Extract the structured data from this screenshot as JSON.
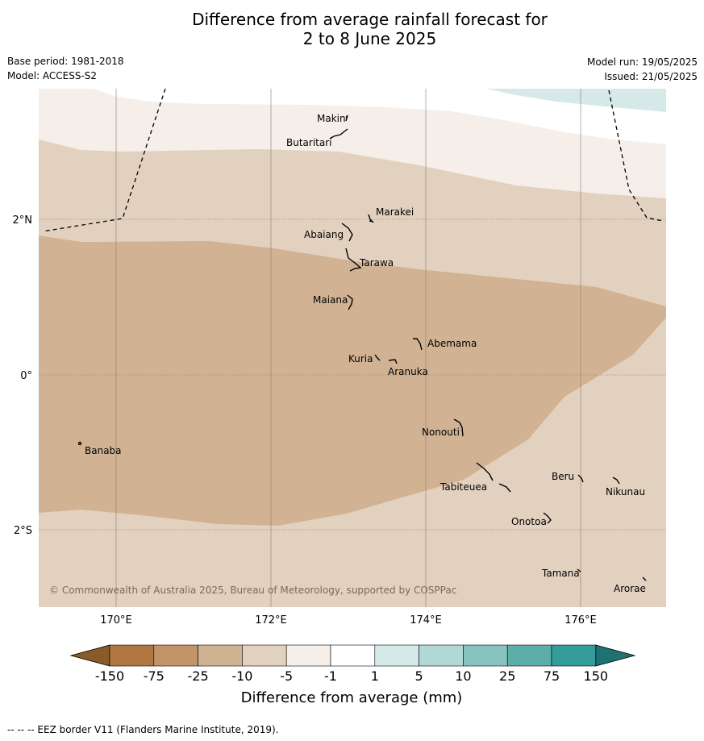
{
  "title_line1": "Difference from average rainfall forecast for",
  "title_line2": "2 to 8 June 2025",
  "base_period": "Base period: 1981-2018",
  "model": "Model: ACCESS-S2",
  "model_run": "Model run: 19/05/2025",
  "issued": "Issued: 21/05/2025",
  "copyright": "© Commonwealth of Australia 2025, Bureau of Meteorology, supported by COSPPac",
  "lat_labels": [
    "2°N",
    "0°",
    "2°S"
  ],
  "lon_labels": [
    "170°E",
    "172°E",
    "174°E",
    "176°E"
  ],
  "islands": [
    "Makin",
    "Butaritari",
    "Marakei",
    "Abaiang",
    "Tarawa",
    "Maiana",
    "Abemama",
    "Kuria",
    "Aranuka",
    "Nonouti",
    "Banaba",
    "Beru",
    "Nikunau",
    "Tabiteuea",
    "Onotoa",
    "Tamana",
    "Arorae"
  ],
  "colorbar": {
    "label": "Difference from average (mm)",
    "ticks": [
      "-150",
      "-75",
      "-25",
      "-10",
      "-5",
      "-1",
      "1",
      "5",
      "10",
      "25",
      "75",
      "150"
    ],
    "colors": [
      "#8b5a2b",
      "#b07840",
      "#c29468",
      "#d1b394",
      "#e3d1c0",
      "#f5eee9",
      "#ffffff",
      "#d5e9e9",
      "#b0d8d7",
      "#86c3c1",
      "#5dadab",
      "#349c99",
      "#1f7272"
    ]
  },
  "footer": "--  --  -- EEZ border V11 (Flanders Marine Institute, 2019)."
}
